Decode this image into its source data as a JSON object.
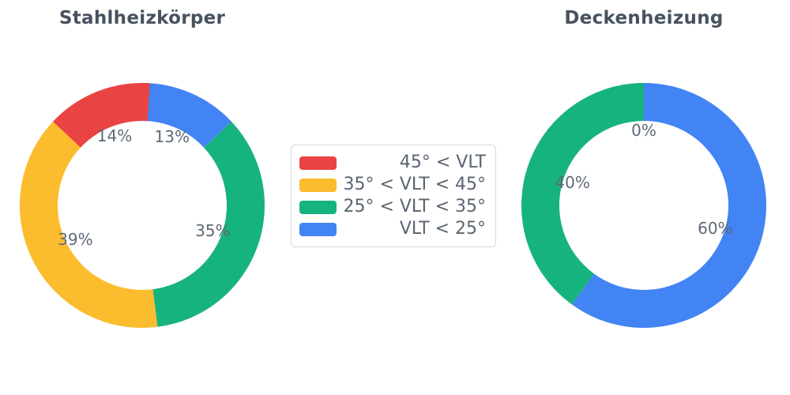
{
  "figure": {
    "background_color": "#ffffff",
    "palette": {
      "red": "#ea4343",
      "yellow": "#fbbc2d",
      "green": "#17b37e",
      "blue": "#4284f4"
    }
  },
  "legend": {
    "items": [
      {
        "label": "45° < VLT",
        "color": "#ea4343"
      },
      {
        "label": "35° < VLT < 45°",
        "color": "#fbbc2d"
      },
      {
        "label": "25° < VLT < 35°",
        "color": "#17b37e"
      },
      {
        "label": "VLT < 25°",
        "color": "#4284f4"
      }
    ]
  },
  "chart_data": [
    {
      "type": "pie",
      "title": "Stahlheizkörper",
      "hole_ratio": 0.69,
      "start_angle_deg": 0,
      "direction": "clockwise",
      "label_format": "percent",
      "slices": [
        {
          "label": "VLT < 25°",
          "value": 13,
          "color": "#4284f4"
        },
        {
          "label": "25° < VLT < 35°",
          "value": 35,
          "color": "#17b37e"
        },
        {
          "label": "35° < VLT < 45°",
          "value": 39,
          "color": "#fbbc2d"
        },
        {
          "label": "45° < VLT",
          "value": 14,
          "color": "#ea4343"
        }
      ]
    },
    {
      "type": "pie",
      "title": "Deckenheizung",
      "hole_ratio": 0.69,
      "start_angle_deg": 0,
      "direction": "clockwise",
      "label_format": "percent",
      "slices": [
        {
          "label": "VLT < 25°",
          "value": 60,
          "color": "#4284f4"
        },
        {
          "label": "25° < VLT < 35°",
          "value": 40,
          "color": "#17b37e"
        },
        {
          "label": "35° < VLT < 45°",
          "value": 0,
          "color": "#fbbc2d"
        },
        {
          "label": "45° < VLT",
          "value": 0,
          "color": "#ea4343"
        }
      ]
    }
  ]
}
